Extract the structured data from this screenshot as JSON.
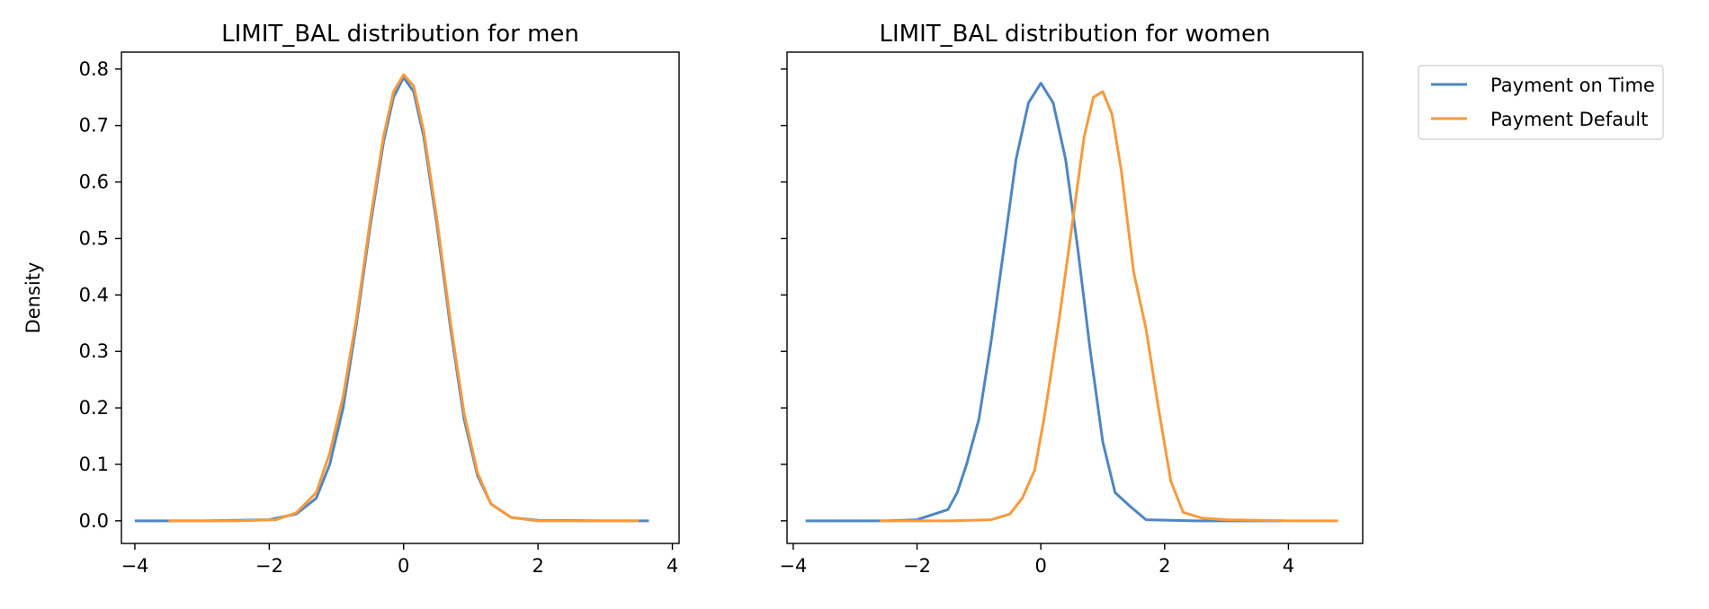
{
  "colors": {
    "on_time": "#4f86c2",
    "default": "#f79a3c"
  },
  "legend": {
    "position": "outside-upper-right",
    "entries": [
      "Payment on Time",
      "Payment Default"
    ]
  },
  "chart_data": [
    {
      "type": "line",
      "title": "LIMIT_BAL distribution for men",
      "xlabel": "",
      "ylabel": "Density",
      "xlim": [
        -4.2,
        4.1
      ],
      "ylim": [
        -0.04,
        0.83
      ],
      "xticks": [
        "−4",
        "−2",
        "0",
        "2",
        "4"
      ],
      "yticks": [
        "0.0",
        "0.1",
        "0.2",
        "0.3",
        "0.4",
        "0.5",
        "0.6",
        "0.7",
        "0.8"
      ],
      "grid": false,
      "series": [
        {
          "name": "Payment on Time",
          "x": [
            -4.0,
            -3.0,
            -2.0,
            -1.6,
            -1.3,
            -1.1,
            -0.9,
            -0.7,
            -0.5,
            -0.3,
            -0.15,
            0.0,
            0.15,
            0.3,
            0.5,
            0.7,
            0.9,
            1.1,
            1.3,
            1.6,
            2.0,
            3.0,
            3.65
          ],
          "y": [
            0.0,
            0.0,
            0.002,
            0.012,
            0.04,
            0.1,
            0.2,
            0.35,
            0.52,
            0.67,
            0.75,
            0.785,
            0.76,
            0.68,
            0.52,
            0.34,
            0.18,
            0.08,
            0.03,
            0.006,
            0.001,
            0.0,
            0.0
          ]
        },
        {
          "name": "Payment Default",
          "x": [
            -3.5,
            -2.5,
            -1.9,
            -1.6,
            -1.3,
            -1.1,
            -0.9,
            -0.7,
            -0.5,
            -0.3,
            -0.15,
            0.0,
            0.15,
            0.3,
            0.5,
            0.7,
            0.9,
            1.1,
            1.3,
            1.6,
            2.0,
            3.0,
            3.5
          ],
          "y": [
            0.0,
            0.0,
            0.002,
            0.014,
            0.05,
            0.12,
            0.22,
            0.36,
            0.53,
            0.68,
            0.76,
            0.79,
            0.77,
            0.69,
            0.53,
            0.35,
            0.19,
            0.085,
            0.03,
            0.006,
            0.0,
            0.0,
            0.0
          ]
        }
      ]
    },
    {
      "type": "line",
      "title": "LIMIT_BAL distribution for women",
      "xlabel": "",
      "ylabel": "",
      "xlim": [
        -4.1,
        5.2
      ],
      "ylim": [
        -0.04,
        0.83
      ],
      "xticks": [
        "−4",
        "−2",
        "0",
        "2",
        "4"
      ],
      "yticks": [],
      "grid": false,
      "series": [
        {
          "name": "Payment on Time",
          "x": [
            -3.8,
            -2.5,
            -2.0,
            -1.5,
            -1.35,
            -1.2,
            -1.0,
            -0.8,
            -0.6,
            -0.4,
            -0.2,
            0.0,
            0.2,
            0.4,
            0.6,
            0.8,
            1.0,
            1.2,
            1.45,
            1.7,
            2.5,
            3.9
          ],
          "y": [
            0.0,
            0.0,
            0.002,
            0.02,
            0.05,
            0.1,
            0.18,
            0.32,
            0.48,
            0.64,
            0.74,
            0.775,
            0.74,
            0.64,
            0.48,
            0.3,
            0.14,
            0.05,
            0.025,
            0.002,
            0.0,
            0.0
          ]
        },
        {
          "name": "Payment Default",
          "x": [
            -2.6,
            -1.5,
            -0.8,
            -0.5,
            -0.3,
            -0.1,
            0.05,
            0.15,
            0.3,
            0.5,
            0.7,
            0.85,
            1.0,
            1.15,
            1.3,
            1.5,
            1.7,
            1.9,
            2.1,
            2.3,
            2.6,
            3.0,
            4.0,
            4.8
          ],
          "y": [
            0.0,
            0.0,
            0.002,
            0.012,
            0.04,
            0.09,
            0.18,
            0.25,
            0.36,
            0.52,
            0.68,
            0.75,
            0.76,
            0.72,
            0.62,
            0.44,
            0.34,
            0.2,
            0.07,
            0.015,
            0.005,
            0.002,
            0.0,
            0.0
          ]
        }
      ]
    }
  ]
}
